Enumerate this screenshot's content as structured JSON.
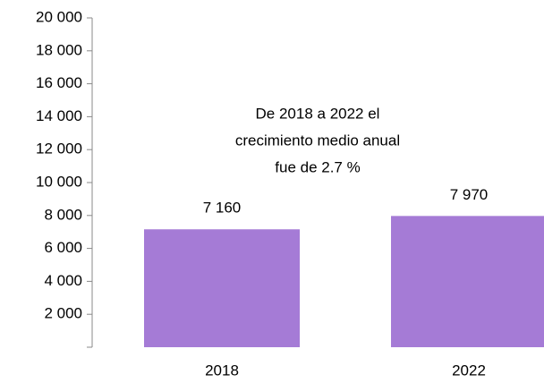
{
  "chart_data": {
    "type": "bar",
    "categories": [
      "2018",
      "2022"
    ],
    "values": [
      7160,
      7970
    ],
    "value_labels": [
      "7 160",
      "7 970"
    ],
    "color": "#a57bd6",
    "ylim": [
      0,
      20000
    ],
    "yticks": [
      {
        "value": 2000,
        "label": "2 000"
      },
      {
        "value": 4000,
        "label": "4 000"
      },
      {
        "value": 6000,
        "label": "6 000"
      },
      {
        "value": 8000,
        "label": "8 000"
      },
      {
        "value": 10000,
        "label": "10 000"
      },
      {
        "value": 12000,
        "label": "12 000"
      },
      {
        "value": 14000,
        "label": "14 000"
      },
      {
        "value": 16000,
        "label": "16 000"
      },
      {
        "value": 18000,
        "label": "18 000"
      },
      {
        "value": 20000,
        "label": "20 000"
      }
    ],
    "grid": false,
    "annotations": [
      "De 2018 a 2022 el",
      "crecimiento medio anual",
      "fue de 2.7 %"
    ]
  }
}
